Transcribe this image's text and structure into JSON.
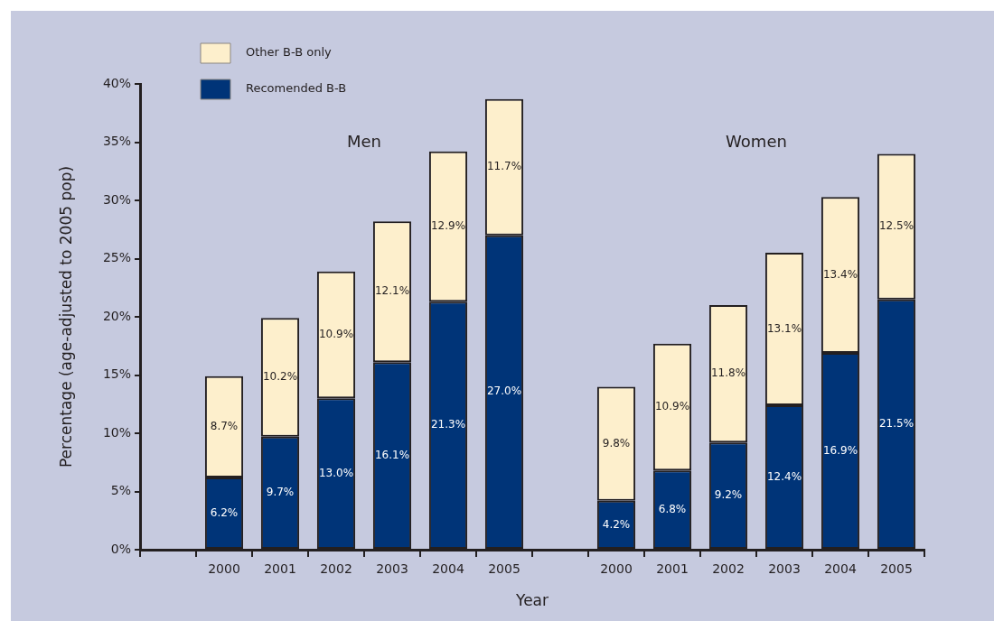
{
  "chart_data": {
    "type": "bar",
    "stacked": true,
    "xlabel": "Year",
    "ylabel": "Percentage (age-adjusted to 2005 pop)",
    "categories": [
      null,
      "2000",
      "2001",
      "2002",
      "2003",
      "2004",
      "2005",
      null,
      "2000",
      "2001",
      "2002",
      "2003",
      "2004",
      "2005"
    ],
    "series": [
      {
        "name": "Recomended B-B",
        "color": "#003478",
        "values": [
          null,
          6.2,
          9.7,
          13.0,
          16.1,
          21.3,
          27.0,
          null,
          4.2,
          6.8,
          9.2,
          12.4,
          16.9,
          21.5
        ],
        "value_labels": [
          null,
          "6.2%",
          "9.7%",
          "13.0%",
          "16.1%",
          "21.3%",
          "27.0%",
          null,
          "4.2%",
          "6.8%",
          "9.2%",
          "12.4%",
          "16.9%",
          "21.5%"
        ]
      },
      {
        "name": "Other B-B only",
        "color": "#fdefcc",
        "values": [
          null,
          8.7,
          10.2,
          10.9,
          12.1,
          12.9,
          11.7,
          null,
          9.8,
          10.9,
          11.8,
          13.1,
          13.4,
          12.5
        ],
        "value_labels": [
          null,
          "8.7%",
          "10.2%",
          "10.9%",
          "12.1%",
          "12.9%",
          "11.7%",
          null,
          "9.8%",
          "10.9%",
          "11.8%",
          "13.1%",
          "13.4%",
          "12.5%"
        ]
      }
    ],
    "ylim": [
      0,
      40
    ],
    "yticks": [
      {
        "value": 0,
        "label": "0%"
      },
      {
        "value": 5,
        "label": "5%"
      },
      {
        "value": 10,
        "label": "10%"
      },
      {
        "value": 15,
        "label": "15%"
      },
      {
        "value": 20,
        "label": "20%"
      },
      {
        "value": 25,
        "label": "25%"
      },
      {
        "value": 30,
        "label": "30%"
      },
      {
        "value": 35,
        "label": "35%"
      },
      {
        "value": 40,
        "label": "40%"
      }
    ],
    "annotations": [
      "Men",
      "Women"
    ],
    "grid": false,
    "legend": "top left"
  }
}
